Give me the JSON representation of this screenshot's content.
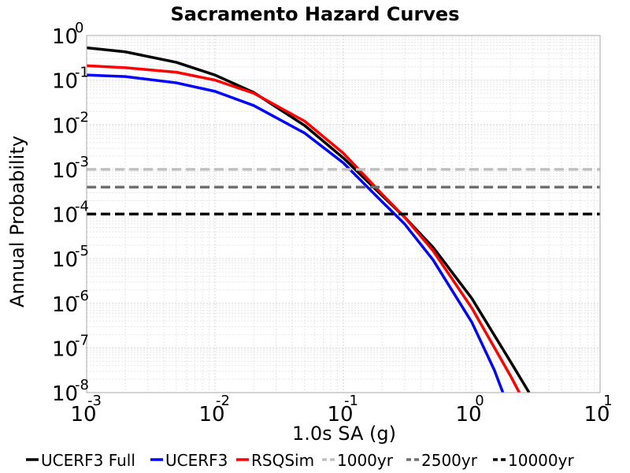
{
  "chart_data": {
    "type": "line",
    "title": "Sacramento Hazard Curves",
    "xlabel": "1.0s SA (g)",
    "ylabel": "Annual Probability",
    "x_scale": "log",
    "y_scale": "log",
    "xlim": [
      0.001,
      10
    ],
    "ylim": [
      1e-08,
      1
    ],
    "grid": true,
    "legend_position": "bottom",
    "x_ticks": [
      {
        "base": "10",
        "exp": "-3",
        "value": 0.001
      },
      {
        "base": "10",
        "exp": "-2",
        "value": 0.01
      },
      {
        "base": "10",
        "exp": "-1",
        "value": 0.1
      },
      {
        "base": "10",
        "exp": "0",
        "value": 1
      },
      {
        "base": "10",
        "exp": "1",
        "value": 10
      }
    ],
    "y_ticks": [
      {
        "base": "10",
        "exp": "0",
        "value": 1
      },
      {
        "base": "10",
        "exp": "-1",
        "value": 0.1
      },
      {
        "base": "10",
        "exp": "-2",
        "value": 0.01
      },
      {
        "base": "10",
        "exp": "-3",
        "value": 0.001
      },
      {
        "base": "10",
        "exp": "-4",
        "value": 0.0001
      },
      {
        "base": "10",
        "exp": "-5",
        "value": 1e-05
      },
      {
        "base": "10",
        "exp": "-6",
        "value": 1e-06
      },
      {
        "base": "10",
        "exp": "-7",
        "value": 1e-07
      },
      {
        "base": "10",
        "exp": "-8",
        "value": 1e-08
      }
    ],
    "series": [
      {
        "name": "UCERF3 Full",
        "color": "#000000",
        "style": "solid",
        "x": [
          0.001,
          0.002,
          0.005,
          0.01,
          0.02,
          0.05,
          0.1,
          0.2,
          0.3,
          0.5,
          1.0,
          2.0,
          2.8
        ],
        "y": [
          0.53,
          0.43,
          0.25,
          0.13,
          0.053,
          0.0096,
          0.0018,
          0.00026,
          8.5e-05,
          1.8e-05,
          1.3e-06,
          5e-08,
          1e-08
        ]
      },
      {
        "name": "UCERF3",
        "color": "#0000ff",
        "style": "solid",
        "x": [
          0.001,
          0.002,
          0.005,
          0.01,
          0.02,
          0.05,
          0.1,
          0.2,
          0.3,
          0.5,
          1.0,
          1.5,
          1.75
        ],
        "y": [
          0.13,
          0.12,
          0.087,
          0.056,
          0.027,
          0.0065,
          0.0014,
          0.00019,
          6e-05,
          9.4e-06,
          3.8e-07,
          3.2e-08,
          1e-08
        ]
      },
      {
        "name": "RSQSim",
        "color": "#ff0000",
        "style": "solid",
        "x": [
          0.001,
          0.002,
          0.005,
          0.01,
          0.02,
          0.05,
          0.1,
          0.2,
          0.3,
          0.5,
          1.0,
          2.0,
          2.35
        ],
        "y": [
          0.21,
          0.19,
          0.15,
          0.1,
          0.051,
          0.012,
          0.0023,
          0.00028,
          8.5e-05,
          1.5e-05,
          7.9e-07,
          2.4e-08,
          1e-08
        ]
      },
      {
        "name": "1000yr",
        "color": "#c0c0c0",
        "style": "dashed",
        "x": [
          0.001,
          10
        ],
        "y": [
          0.001,
          0.001
        ]
      },
      {
        "name": "2500yr",
        "color": "#707070",
        "style": "dashed",
        "x": [
          0.001,
          10
        ],
        "y": [
          0.0004,
          0.0004
        ]
      },
      {
        "name": "10000yr",
        "color": "#000000",
        "style": "dashed",
        "x": [
          0.001,
          10
        ],
        "y": [
          0.0001,
          0.0001
        ]
      }
    ]
  }
}
